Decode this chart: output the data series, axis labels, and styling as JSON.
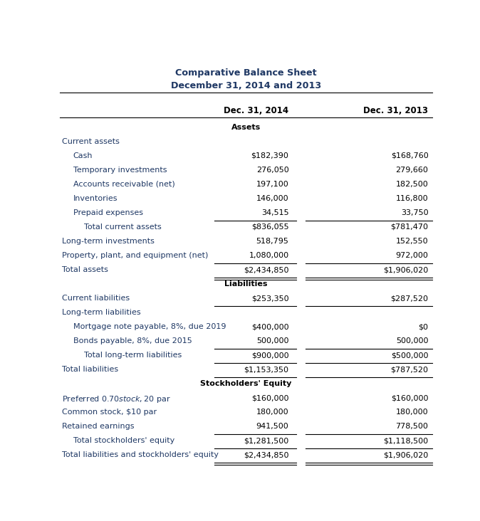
{
  "title1": "Comparative Balance Sheet",
  "title2": "December 31, 2014 and 2013",
  "col_headers": [
    "Dec. 31, 2014",
    "Dec. 31, 2013"
  ],
  "rows": [
    {
      "label": "Assets",
      "val2014": "",
      "val2013": "",
      "style": "section_bold",
      "indent": 0
    },
    {
      "label": "Current assets",
      "val2014": "",
      "val2013": "",
      "style": "label_only",
      "indent": 0
    },
    {
      "label": "Cash",
      "val2014": "$182,390",
      "val2013": "$168,760",
      "style": "normal",
      "indent": 1
    },
    {
      "label": "Temporary investments",
      "val2014": "276,050",
      "val2013": "279,660",
      "style": "normal",
      "indent": 1
    },
    {
      "label": "Accounts receivable (net)",
      "val2014": "197,100",
      "val2013": "182,500",
      "style": "normal",
      "indent": 1
    },
    {
      "label": "Inventories",
      "val2014": "146,000",
      "val2013": "116,800",
      "style": "normal",
      "indent": 1
    },
    {
      "label": "Prepaid expenses",
      "val2014": "34,515",
      "val2013": "33,750",
      "style": "underline",
      "indent": 1
    },
    {
      "label": "Total current assets",
      "val2014": "$836,055",
      "val2013": "$781,470",
      "style": "normal",
      "indent": 2
    },
    {
      "label": "Long-term investments",
      "val2014": "518,795",
      "val2013": "152,550",
      "style": "normal",
      "indent": 0
    },
    {
      "label": "Property, plant, and equipment (net)",
      "val2014": "1,080,000",
      "val2013": "972,000",
      "style": "underline",
      "indent": 0
    },
    {
      "label": "Total assets",
      "val2014": "$2,434,850",
      "val2013": "$1,906,020",
      "style": "double_underline",
      "indent": 0
    },
    {
      "label": "Liabilities",
      "val2014": "",
      "val2013": "",
      "style": "section_bold",
      "indent": 0
    },
    {
      "label": "Current liabilities",
      "val2014": "$253,350",
      "val2013": "$287,520",
      "style": "underline",
      "indent": 0
    },
    {
      "label": "Long-term liabilities",
      "val2014": "",
      "val2013": "",
      "style": "label_only",
      "indent": 0
    },
    {
      "label": "Mortgage note payable, 8%, due 2019",
      "val2014": "$400,000",
      "val2013": "$0",
      "style": "normal",
      "indent": 1
    },
    {
      "label": "Bonds payable, 8%, due 2015",
      "val2014": "500,000",
      "val2013": "500,000",
      "style": "underline",
      "indent": 1
    },
    {
      "label": "Total long-term liabilities",
      "val2014": "$900,000",
      "val2013": "$500,000",
      "style": "underline",
      "indent": 2
    },
    {
      "label": "Total liabilities",
      "val2014": "$1,153,350",
      "val2013": "$787,520",
      "style": "underline",
      "indent": 0
    },
    {
      "label": "Stockholders' Equity",
      "val2014": "",
      "val2013": "",
      "style": "section_bold",
      "indent": 0
    },
    {
      "label": "Preferred $0.70 stock, $20 par",
      "val2014": "$160,000",
      "val2013": "$160,000",
      "style": "normal",
      "indent": 0
    },
    {
      "label": "Common stock, $10 par",
      "val2014": "180,000",
      "val2013": "180,000",
      "style": "normal",
      "indent": 0
    },
    {
      "label": "Retained earnings",
      "val2014": "941,500",
      "val2013": "778,500",
      "style": "underline",
      "indent": 0
    },
    {
      "label": "Total stockholders' equity",
      "val2014": "$1,281,500",
      "val2013": "$1,118,500",
      "style": "underline",
      "indent": 1
    },
    {
      "label": "Total liabilities and stockholders' equity",
      "val2014": "$2,434,850",
      "val2013": "$1,906,020",
      "style": "double_underline",
      "indent": 0
    }
  ],
  "label_color_blue": "#1f3864",
  "label_color_black": "#000000",
  "value_color": "#000000",
  "header_color": "#000000",
  "bg_color": "#ffffff",
  "title_color": "#1f3864",
  "section_bold_color": "#000000"
}
